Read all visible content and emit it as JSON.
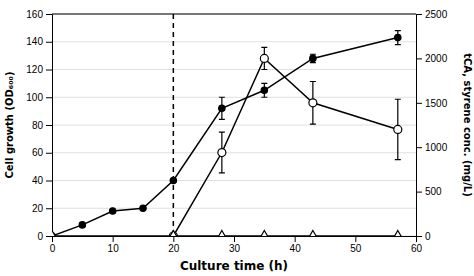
{
  "chart_data": {
    "type": "line",
    "xlabel": "Culture time (h)",
    "ylabel": "Cell growth (OD₆₀₀)",
    "y2label": "tCA, styrene conc. (mg/L)",
    "xlim": [
      0,
      60
    ],
    "xticks": [
      0,
      10,
      20,
      30,
      40,
      50,
      60
    ],
    "ylim": [
      0,
      160
    ],
    "yticks": [
      0,
      20,
      40,
      60,
      80,
      100,
      120,
      140,
      160
    ],
    "y2lim": [
      0,
      2500
    ],
    "y2ticks": [
      0,
      500,
      1000,
      1500,
      2000,
      2500
    ],
    "grid": true,
    "vlines": [
      20
    ],
    "series": [
      {
        "axis": "y",
        "color": "#000000",
        "marker": "circle",
        "x": [
          0,
          5,
          10,
          15,
          20,
          28,
          35,
          43,
          57
        ],
        "values": [
          0,
          8,
          18,
          20,
          40,
          92,
          105,
          128,
          143
        ],
        "errors": [
          0,
          0,
          0,
          0,
          0,
          8,
          5,
          3,
          5
        ]
      },
      {
        "axis": "y2",
        "color": "#000000",
        "marker": "circle-open",
        "x": [
          20,
          28,
          35,
          43,
          57
        ],
        "values": [
          0,
          940,
          2000,
          1500,
          1200
        ],
        "errors": [
          0,
          230,
          125,
          240,
          340
        ]
      },
      {
        "axis": "y2",
        "color": "#000000",
        "marker": "triangle-open",
        "x": [
          0,
          20,
          28,
          35,
          43,
          57
        ],
        "values": [
          0,
          0,
          0,
          0,
          0,
          0
        ]
      }
    ]
  }
}
